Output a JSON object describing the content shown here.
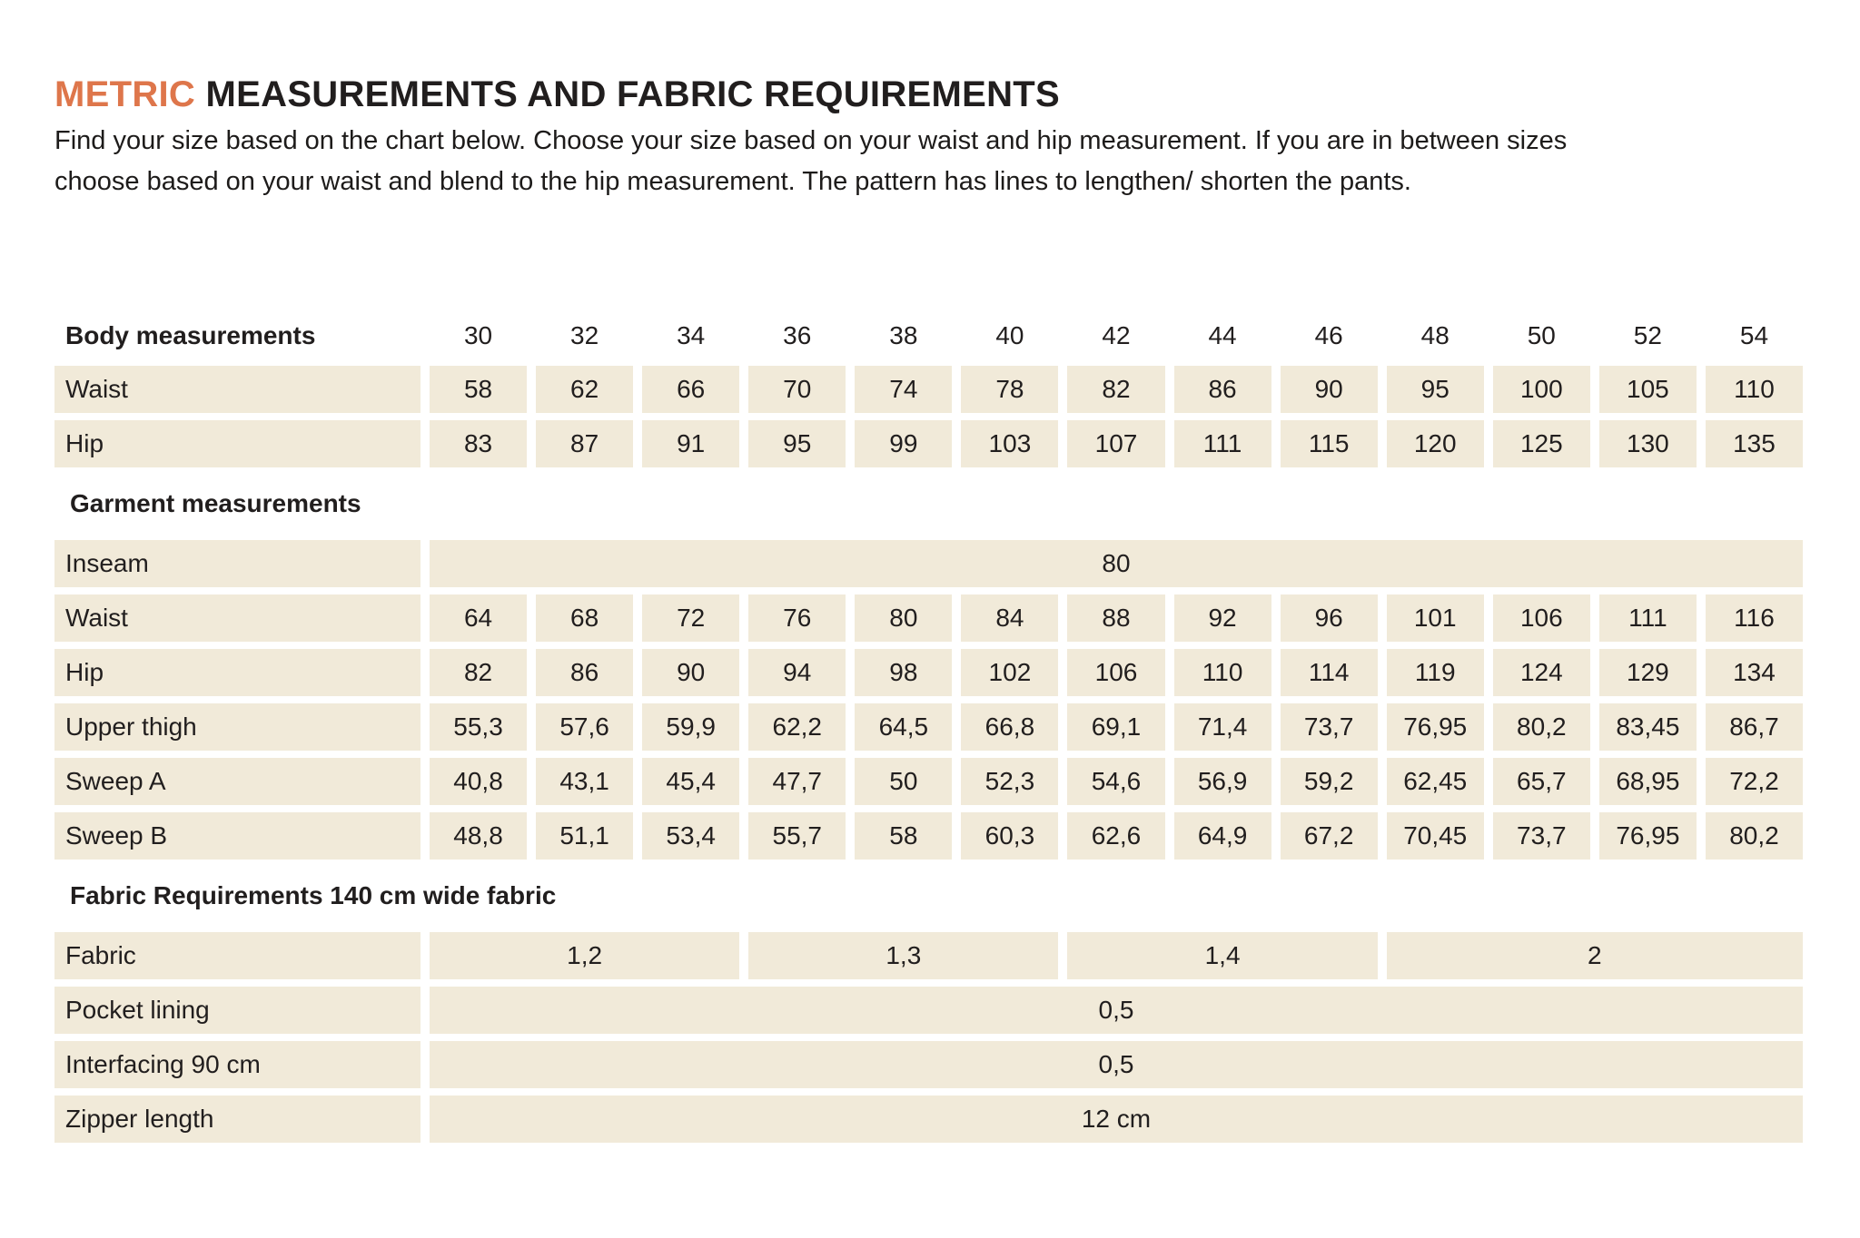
{
  "page": {
    "title_highlight": "METRIC",
    "title_rest": " MEASUREMENTS AND FABRIC REQUIREMENTS",
    "intro": [
      "Find your size based on the chart below. Choose your size based on your waist and hip measurement. If you are in between sizes",
      "choose based on your waist and blend to the hip measurement. The pattern has lines to lengthen/ shorten the pants."
    ]
  },
  "colors": {
    "accent": "#de764b",
    "cell_background": "#f1ead9",
    "text": "#211e1e"
  },
  "size_chart": {
    "sizes": [
      "30",
      "32",
      "34",
      "36",
      "38",
      "40",
      "42",
      "44",
      "46",
      "48",
      "50",
      "52",
      "54"
    ],
    "body": {
      "header": "Body measurements",
      "rows": [
        {
          "label": "Waist",
          "values": [
            "58",
            "62",
            "66",
            "70",
            "74",
            "78",
            "82",
            "86",
            "90",
            "95",
            "100",
            "105",
            "110"
          ]
        },
        {
          "label": "Hip",
          "values": [
            "83",
            "87",
            "91",
            "95",
            "99",
            "103",
            "107",
            "111",
            "115",
            "120",
            "125",
            "130",
            "135"
          ]
        }
      ]
    },
    "garment": {
      "header": "Garment measurements",
      "inseam": {
        "label": "Inseam",
        "value": "80"
      },
      "rows": [
        {
          "label": "Waist",
          "values": [
            "64",
            "68",
            "72",
            "76",
            "80",
            "84",
            "88",
            "92",
            "96",
            "101",
            "106",
            "111",
            "116"
          ]
        },
        {
          "label": "Hip",
          "values": [
            "82",
            "86",
            "90",
            "94",
            "98",
            "102",
            "106",
            "110",
            "114",
            "119",
            "124",
            "129",
            "134"
          ]
        },
        {
          "label": "Upper thigh",
          "values": [
            "55,3",
            "57,6",
            "59,9",
            "62,2",
            "64,5",
            "66,8",
            "69,1",
            "71,4",
            "73,7",
            "76,95",
            "80,2",
            "83,45",
            "86,7"
          ]
        },
        {
          "label": "Sweep A",
          "values": [
            "40,8",
            "43,1",
            "45,4",
            "47,7",
            "50",
            "52,3",
            "54,6",
            "56,9",
            "59,2",
            "62,45",
            "65,7",
            "68,95",
            "72,2"
          ]
        },
        {
          "label": "Sweep B",
          "values": [
            "48,8",
            "51,1",
            "53,4",
            "55,7",
            "58",
            "60,3",
            "62,6",
            "64,9",
            "67,2",
            "70,45",
            "73,7",
            "76,95",
            "80,2"
          ]
        }
      ]
    },
    "fabric": {
      "header": "Fabric Requirements 140 cm wide fabric",
      "fabric_row": {
        "label": "Fabric",
        "spans": [
          {
            "value": "1,2",
            "cols": 3
          },
          {
            "value": "1,3",
            "cols": 3
          },
          {
            "value": "1,4",
            "cols": 3
          },
          {
            "value": "2",
            "cols": 4
          }
        ]
      },
      "rows": [
        {
          "label": "Pocket lining",
          "value": "0,5"
        },
        {
          "label": "Interfacing 90 cm",
          "value": "0,5"
        },
        {
          "label": "Zipper length",
          "value": "12 cm"
        }
      ]
    }
  }
}
